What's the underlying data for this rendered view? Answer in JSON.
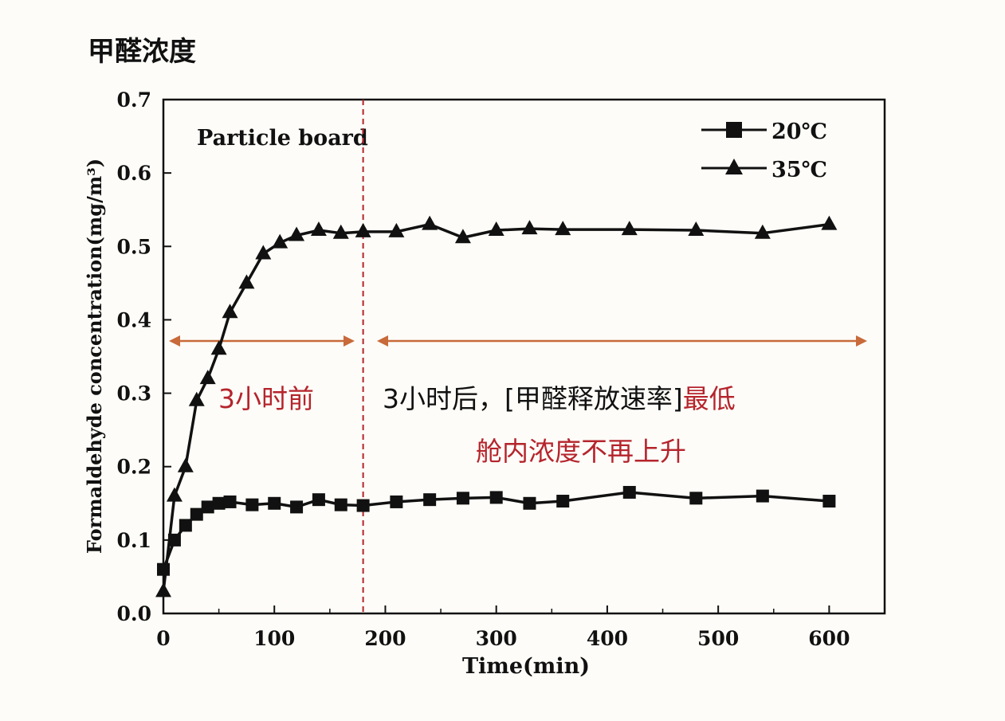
{
  "header_cn": "甲醛浓度",
  "chart_data": {
    "type": "line",
    "title": "",
    "inner_label": "Particle board",
    "xlabel": "Time(min)",
    "ylabel": "Formaldehyde concentration(mg/m³)",
    "xlim": [
      0,
      650
    ],
    "ylim": [
      0.0,
      0.7
    ],
    "xticks": [
      0,
      100,
      200,
      300,
      400,
      500,
      600
    ],
    "yticks": [
      "0.0",
      "0.1",
      "0.2",
      "0.3",
      "0.4",
      "0.5",
      "0.6",
      "0.7"
    ],
    "legend_position": "top-right",
    "series": [
      {
        "name": "20℃",
        "marker": "square",
        "x": [
          0,
          10,
          20,
          30,
          40,
          50,
          60,
          80,
          100,
          120,
          140,
          160,
          180,
          210,
          240,
          270,
          300,
          330,
          360,
          420,
          480,
          540,
          600
        ],
        "y": [
          0.06,
          0.1,
          0.12,
          0.135,
          0.145,
          0.15,
          0.152,
          0.148,
          0.15,
          0.145,
          0.155,
          0.148,
          0.147,
          0.152,
          0.155,
          0.157,
          0.158,
          0.15,
          0.153,
          0.165,
          0.157,
          0.16,
          0.153
        ]
      },
      {
        "name": "35℃",
        "marker": "triangle",
        "x": [
          0,
          10,
          20,
          30,
          40,
          50,
          60,
          75,
          90,
          105,
          120,
          140,
          160,
          180,
          210,
          240,
          270,
          300,
          330,
          360,
          420,
          480,
          540,
          600
        ],
        "y": [
          0.03,
          0.16,
          0.2,
          0.29,
          0.32,
          0.36,
          0.41,
          0.45,
          0.49,
          0.505,
          0.515,
          0.522,
          0.518,
          0.52,
          0.52,
          0.53,
          0.512,
          0.522,
          0.524,
          0.523,
          0.523,
          0.522,
          0.518,
          0.53
        ]
      }
    ],
    "divider_x": 180,
    "annotations": {
      "before": "3小时前",
      "after_part1": "3小时后，[甲醛释放速率]",
      "after_part2": "最低",
      "after_line2": "舱内浓度不再上升"
    },
    "colors": {
      "series": "#111111",
      "annotation": "#b5242c",
      "arrow": "#c86a3a",
      "divider": "#b5242c"
    }
  }
}
